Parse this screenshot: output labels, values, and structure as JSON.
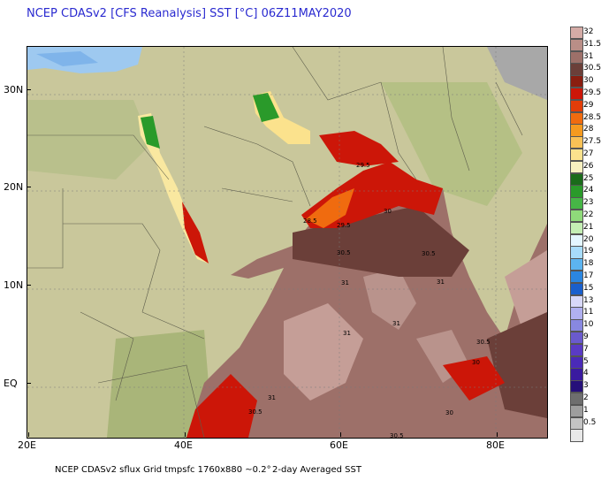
{
  "title": "NCEP CDASv2 [CFS Reanalysis] SST [°C] 06Z11MAY2020",
  "footer": {
    "left": "NCEP CDASv2 sflux Grid tmpsfc 1760x880 ~0.2°",
    "right": "2-day Averaged SST"
  },
  "axes": {
    "lat_labels": [
      "30N",
      "20N",
      "10N",
      "EQ"
    ],
    "lon_labels": [
      "20E",
      "40E",
      "60E",
      "80E"
    ]
  },
  "colorbar": {
    "levels": [
      {
        "label": "32",
        "color": "#d4aba6"
      },
      {
        "label": "31.5",
        "color": "#b98e87"
      },
      {
        "label": "31",
        "color": "#9d7069"
      },
      {
        "label": "30.5",
        "color": "#6b3f39"
      },
      {
        "label": "30",
        "color": "#8a1e10"
      },
      {
        "label": "29.5",
        "color": "#cc1608"
      },
      {
        "label": "29",
        "color": "#e23d09"
      },
      {
        "label": "28.5",
        "color": "#f06b0f"
      },
      {
        "label": "28",
        "color": "#f59a1f"
      },
      {
        "label": "27.5",
        "color": "#f9c156"
      },
      {
        "label": "27",
        "color": "#fbe28d"
      },
      {
        "label": "26",
        "color": "#f8f0c0"
      },
      {
        "label": "25",
        "color": "#1a6b1a"
      },
      {
        "label": "24",
        "color": "#2a9a2a"
      },
      {
        "label": "23",
        "color": "#46b646"
      },
      {
        "label": "22",
        "color": "#8fda7a"
      },
      {
        "label": "21",
        "color": "#c4eeb4"
      },
      {
        "label": "20",
        "color": "#e4f6ff"
      },
      {
        "label": "19",
        "color": "#a8dcfb"
      },
      {
        "label": "18",
        "color": "#5cb4f0"
      },
      {
        "label": "17",
        "color": "#2b86e0"
      },
      {
        "label": "15",
        "color": "#1a5fcc"
      },
      {
        "label": "13",
        "color": "#d8d8f8"
      },
      {
        "label": "11",
        "color": "#b0b0f0"
      },
      {
        "label": "10",
        "color": "#8888e0"
      },
      {
        "label": "9",
        "color": "#6a5acd"
      },
      {
        "label": "7",
        "color": "#5a3bc4"
      },
      {
        "label": "5",
        "color": "#4a2ab8"
      },
      {
        "label": "4",
        "color": "#3a1aa0"
      },
      {
        "label": "3",
        "color": "#26107a"
      },
      {
        "label": "2",
        "color": "#6e6e6e"
      },
      {
        "label": "1",
        "color": "#9e9e9e"
      },
      {
        "label": "0.5",
        "color": "#c4c4c4"
      },
      {
        "label": "",
        "color": "#e8e8e8"
      }
    ]
  },
  "contour_labels": [
    "29.5",
    "30",
    "28.5",
    "29.5",
    "30.5",
    "30.5",
    "31",
    "31",
    "31",
    "31",
    "31",
    "30.5",
    "30",
    "30",
    "30.5",
    "30.5"
  ]
}
